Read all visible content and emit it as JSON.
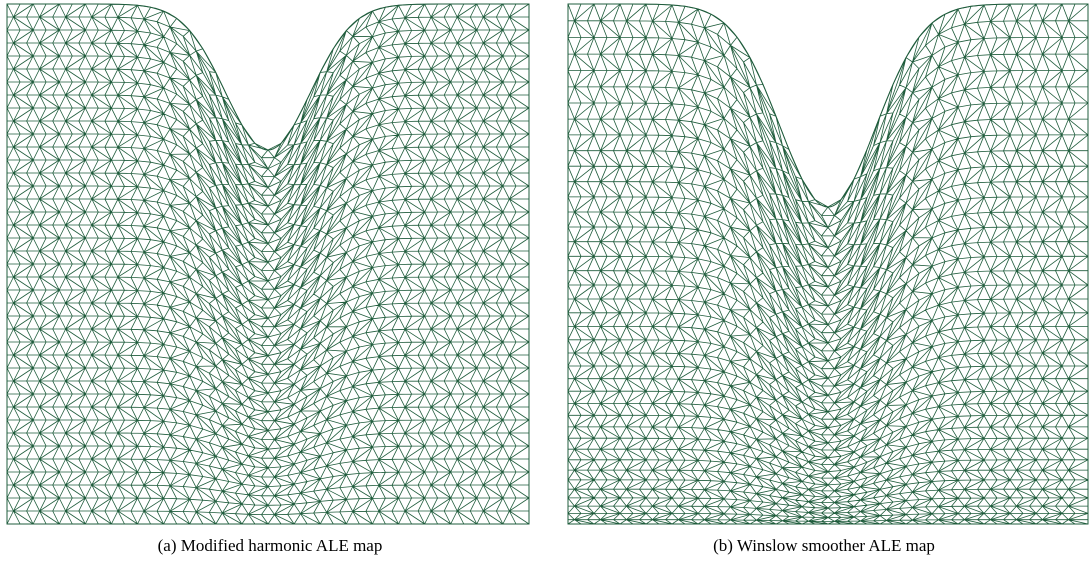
{
  "panels": [
    {
      "id": "a",
      "caption": "(a)  Modified harmonic ALE map",
      "mesh_color": "#1f5c3c",
      "smoother": "harmonic"
    },
    {
      "id": "b",
      "caption": "(b)  Winslow smoother ALE map",
      "mesh_color": "#1f5c3c",
      "smoother": "winslow"
    }
  ]
}
